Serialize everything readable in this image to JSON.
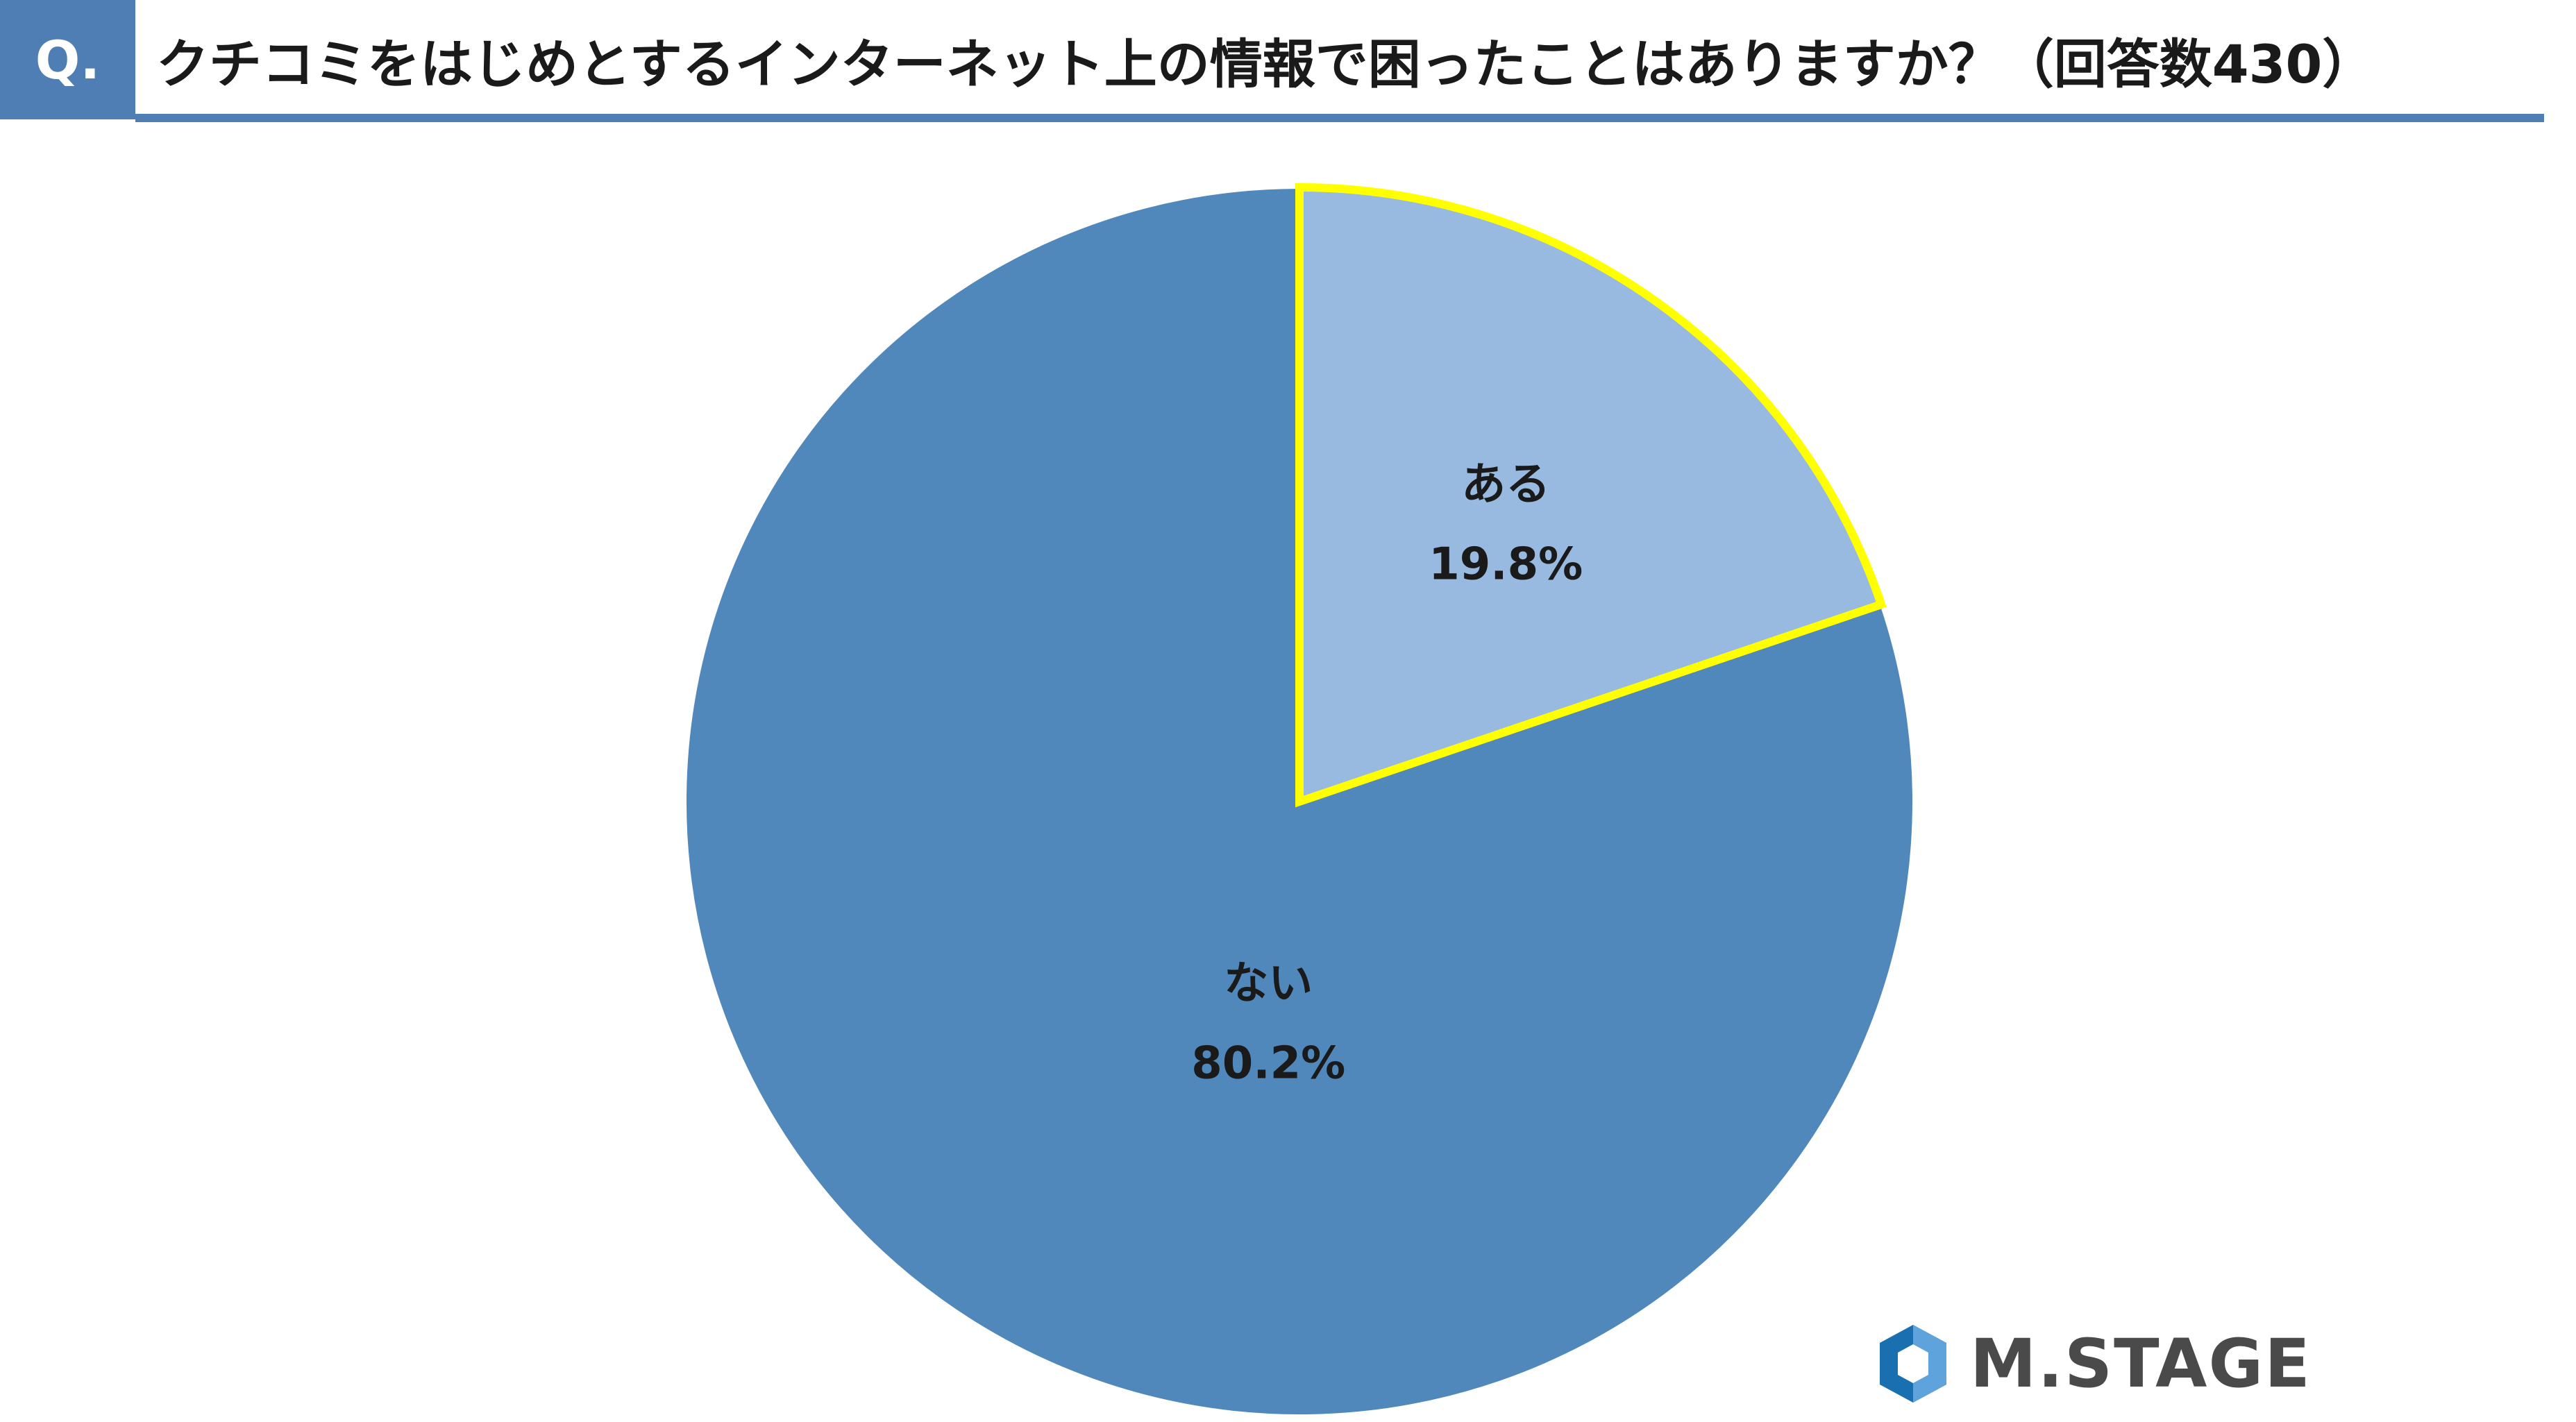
{
  "header": {
    "q_label": "Q.",
    "title": "クチコミをはじめとするインターネット上の情報で困ったことはありますか？（回答数430）"
  },
  "chart_data": {
    "type": "pie",
    "title": "クチコミをはじめとするインターネット上の情報で困ったことはありますか？（回答数430）",
    "categories": [
      "ある",
      "ない"
    ],
    "values": [
      19.8,
      80.2
    ],
    "value_labels": [
      "19.8%",
      "80.2%"
    ],
    "colors": [
      "#98b9e0",
      "#5088bc"
    ],
    "highlight_color": "#ffff00",
    "highlighted_slice": "ある",
    "start_angle": "12 o'clock, clockwise",
    "legend": "none"
  },
  "brand": {
    "logo_text": "M.STAGE",
    "logo_icon": "m-stage-logo-icon",
    "colors": [
      "#1a6fb0",
      "#7fb3e6"
    ]
  }
}
